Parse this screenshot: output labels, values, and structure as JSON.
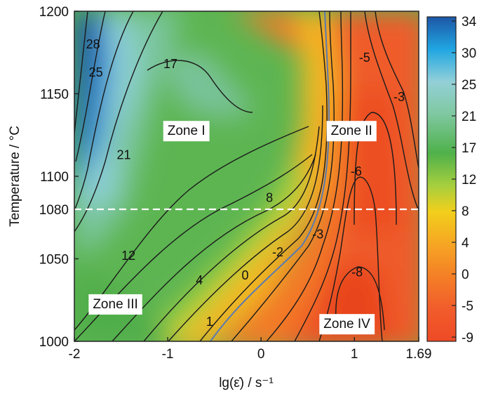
{
  "chart_data": {
    "type": "heatmap",
    "subtype": "filled-contour",
    "xlabel": "lg(ε̇) / s⁻¹",
    "ylabel": "Temperature / °C",
    "xlim": [
      -2,
      1.69
    ],
    "ylim": [
      1000,
      1200
    ],
    "x_ticks": [
      "-2",
      "-1",
      "0",
      "1",
      "1.69"
    ],
    "x_tick_values": [
      -2,
      -1,
      0,
      1,
      1.69
    ],
    "y_ticks": [
      "1000",
      "1050",
      "1100",
      "1150",
      "1200"
    ],
    "y_tick_values": [
      1000,
      1050,
      1100,
      1150,
      1200
    ],
    "reference_line": {
      "y": 1080,
      "label": "1080",
      "color": "#e8603a",
      "style": "dashed"
    },
    "colorbar": {
      "ticks": [
        "34",
        "30",
        "25",
        "21",
        "17",
        "12",
        "8",
        "4",
        "0",
        "-5",
        "-9"
      ],
      "range": [
        -9,
        34
      ],
      "colors": [
        "#1d56a6",
        "#20a6e2",
        "#93d0d8",
        "#7fc8a0",
        "#4fb14a",
        "#a6cf3e",
        "#f2cf1c",
        "#f6a623",
        "#f47f26",
        "#f15c2b",
        "#ee4a25"
      ]
    },
    "contour_labels": [
      {
        "text": "28",
        "x": -1.8,
        "y": 1180
      },
      {
        "text": "25",
        "x": -1.77,
        "y": 1163
      },
      {
        "text": "21",
        "x": -1.47,
        "y": 1113
      },
      {
        "text": "17",
        "x": -0.97,
        "y": 1168
      },
      {
        "text": "12",
        "x": -1.42,
        "y": 1052
      },
      {
        "text": "8",
        "x": 0.09,
        "y": 1087
      },
      {
        "text": "4",
        "x": -0.66,
        "y": 1037
      },
      {
        "text": "1",
        "x": -0.55,
        "y": 1012
      },
      {
        "text": "0",
        "x": -0.17,
        "y": 1040
      },
      {
        "text": "-2",
        "x": 0.18,
        "y": 1054
      },
      {
        "text": "-3",
        "x": 0.61,
        "y": 1065
      },
      {
        "text": "-6",
        "x": 1.02,
        "y": 1103
      },
      {
        "text": "-5",
        "x": 1.11,
        "y": 1172
      },
      {
        "text": "-3",
        "x": 1.48,
        "y": 1148
      },
      {
        "text": "-8",
        "x": 1.03,
        "y": 1042
      }
    ],
    "zones": [
      {
        "label": "Zone I",
        "x": -0.8,
        "y": 1128
      },
      {
        "label": "Zone II",
        "x": 0.97,
        "y": 1128
      },
      {
        "label": "Zone  III",
        "x": -1.56,
        "y": 1023
      },
      {
        "label": "Zone IV",
        "x": 0.92,
        "y": 1011
      }
    ]
  }
}
